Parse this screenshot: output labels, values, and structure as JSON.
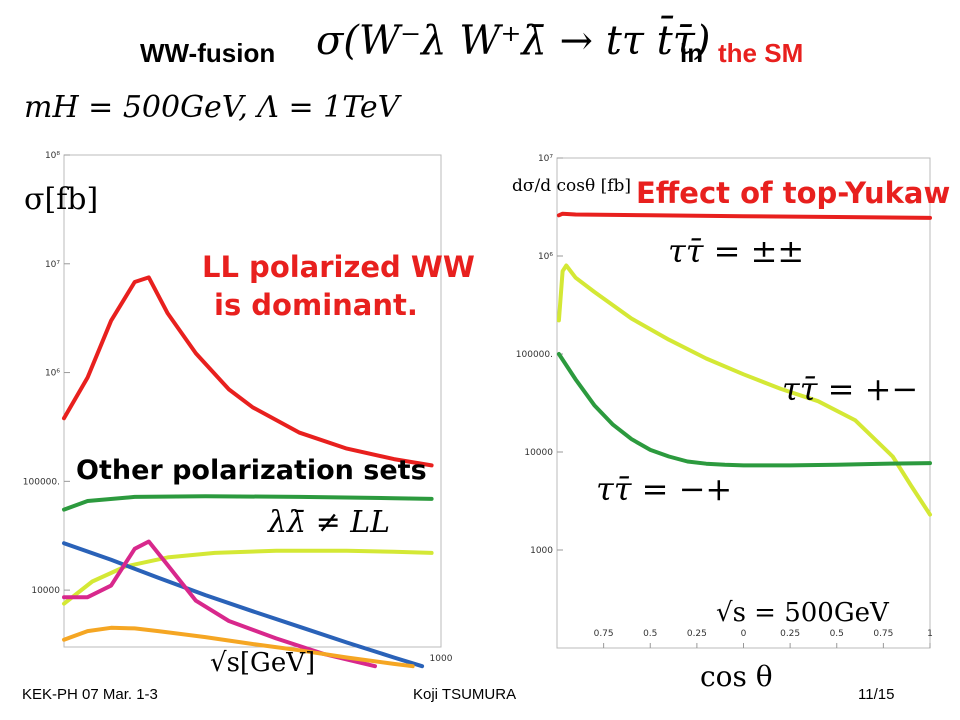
{
  "title": {
    "prefix": "WW-fusion",
    "formula": "σ(W⁻λ W⁺λ̄ → tτ t̄τ̄)",
    "in_word": "in",
    "sm_word": "the SM"
  },
  "params": "mH = 500GeV, Λ = 1TeV",
  "colors": {
    "red": "#e8201e",
    "green": "#2c9a3e",
    "yellowgreen": "#d4e835",
    "blue": "#2a62b8",
    "magenta": "#d8288c",
    "orange": "#f5a623"
  },
  "annotations": {
    "ll_line1": "LL polarized WW",
    "ll_line2": "is dominant.",
    "other_sets": "Other polarization sets",
    "lambda_ne_ll": "λλ̄ ≠ LL",
    "top_yukawa": "Effect of top-Yukaw",
    "tt_pp": "ττ̄ = ±±",
    "tt_pm": "ττ̄ = +−",
    "tt_mp": "ττ̄ = −+",
    "sqrt_s": "√s = 500GeV"
  },
  "footer": {
    "left": "KEK-PH 07 Mar. 1-3",
    "center": "Koji TSUMURA",
    "right": "11/15"
  },
  "chart_data": [
    {
      "type": "line",
      "ylabel": "σ[fb]",
      "xlabel": "√s[GeV]",
      "yscale": "log",
      "ylim": [
        3000,
        100000000
      ],
      "xlim": [
        200,
        1000
      ],
      "xtick_labels": [
        "1000"
      ],
      "ytick_labels": [
        "10⁸",
        "10⁷",
        "10⁶",
        "100000.",
        "10000"
      ],
      "series": [
        {
          "color": "red",
          "x": [
            200,
            250,
            300,
            350,
            380,
            420,
            480,
            550,
            600,
            700,
            800,
            900,
            980
          ],
          "y": [
            380000,
            900000,
            3000000,
            6800000,
            7500000,
            3500000,
            1500000,
            700000,
            480000,
            280000,
            200000,
            160000,
            140000
          ]
        },
        {
          "color": "green",
          "x": [
            200,
            250,
            350,
            500,
            700,
            900,
            980
          ],
          "y": [
            55000,
            66000,
            72000,
            73000,
            72000,
            70000,
            69000
          ]
        },
        {
          "color": "yellowgreen",
          "x": [
            200,
            260,
            330,
            420,
            520,
            650,
            800,
            900,
            980
          ],
          "y": [
            7500,
            12000,
            16500,
            20000,
            22000,
            23000,
            23000,
            22500,
            22000
          ]
        },
        {
          "color": "blue",
          "x": [
            200,
            300,
            400,
            500,
            600,
            700,
            800,
            900,
            960
          ],
          "y": [
            27000,
            19000,
            13000,
            9000,
            6400,
            4600,
            3300,
            2400,
            2000
          ]
        },
        {
          "color": "magenta",
          "x": [
            200,
            250,
            300,
            350,
            380,
            420,
            480,
            550,
            650,
            750,
            860
          ],
          "y": [
            8600,
            8600,
            11000,
            24000,
            28000,
            17000,
            8000,
            5200,
            3600,
            2600,
            2000
          ]
        },
        {
          "color": "orange",
          "x": [
            200,
            250,
            300,
            350,
            400,
            500,
            600,
            700,
            800,
            900,
            940
          ],
          "y": [
            3500,
            4200,
            4500,
            4450,
            4200,
            3700,
            3200,
            2800,
            2400,
            2100,
            2000
          ]
        }
      ]
    },
    {
      "type": "line",
      "ylabel": "dσ/d cosθ [fb]",
      "xlabel": "cos θ",
      "yscale": "log",
      "ylim": [
        100,
        10000000
      ],
      "xlim": [
        -1,
        1
      ],
      "xtick_labels": [
        "0.75",
        "0.5",
        "0.25",
        "0",
        "0.25",
        "0.5",
        "0.75",
        "1"
      ],
      "xtick_values": [
        -0.75,
        -0.5,
        -0.25,
        0,
        0.25,
        0.5,
        0.75,
        1
      ],
      "ytick_labels": [
        "10⁷",
        "10⁶",
        "100000.",
        "10000",
        "1000"
      ],
      "ytick_values": [
        10000000,
        1000000,
        100000,
        10000,
        1000
      ],
      "series": [
        {
          "color": "red",
          "x": [
            -0.99,
            -0.97,
            -0.9,
            -0.5,
            0,
            0.5,
            1
          ],
          "y": [
            2600000,
            2700000,
            2650000,
            2600000,
            2550000,
            2500000,
            2450000
          ]
        },
        {
          "color": "yellowgreen",
          "x": [
            -0.99,
            -0.97,
            -0.95,
            -0.9,
            -0.8,
            -0.6,
            -0.4,
            -0.2,
            0,
            0.2,
            0.4,
            0.6,
            0.8,
            0.9,
            1
          ],
          "y": [
            220000,
            700000,
            800000,
            600000,
            430000,
            230000,
            140000,
            90000,
            62000,
            44000,
            33000,
            21000,
            9000,
            4500,
            2300
          ]
        },
        {
          "color": "green",
          "x": [
            -0.99,
            -0.9,
            -0.8,
            -0.7,
            -0.6,
            -0.5,
            -0.4,
            -0.3,
            -0.2,
            -0.1,
            0,
            0.25,
            0.5,
            0.75,
            1
          ],
          "y": [
            100000,
            55000,
            30000,
            19000,
            13500,
            10500,
            9000,
            8000,
            7600,
            7400,
            7300,
            7300,
            7400,
            7600,
            7700
          ]
        }
      ]
    }
  ]
}
